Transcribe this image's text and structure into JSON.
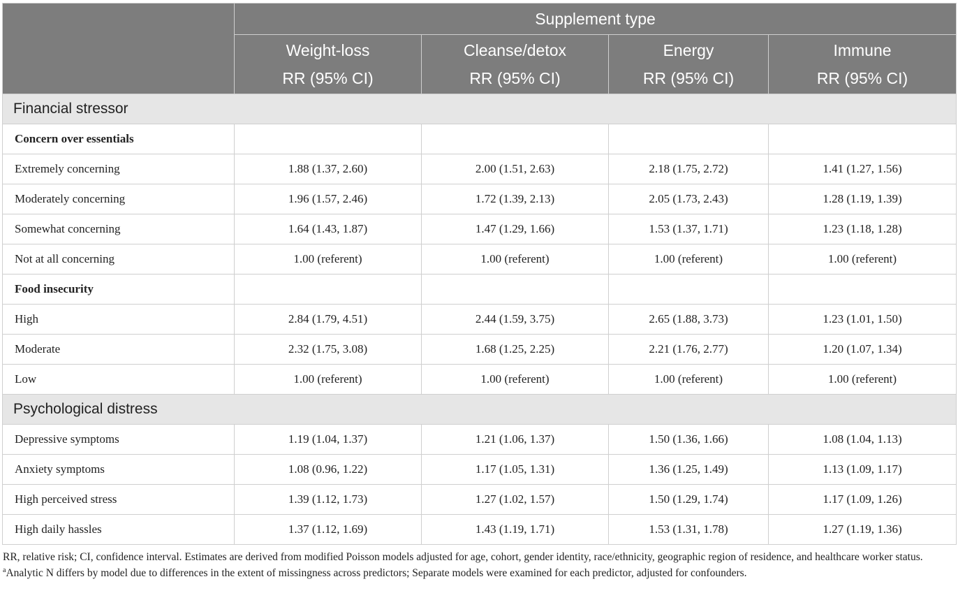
{
  "header": {
    "group_label": "Supplement type",
    "columns": [
      {
        "name": "Weight-loss",
        "stat": "RR (95% CI)"
      },
      {
        "name": "Cleanse/detox",
        "stat": "RR (95% CI)"
      },
      {
        "name": "Energy",
        "stat": "RR (95% CI)"
      },
      {
        "name": "Immune",
        "stat": "RR (95% CI)"
      }
    ]
  },
  "sections": [
    {
      "title": "Financial stressor",
      "subsections": [
        {
          "title": "Concern over essentials",
          "rows": [
            {
              "label": "Extremely concerning",
              "values": [
                "1.88 (1.37, 2.60)",
                "2.00 (1.51, 2.63)",
                "2.18 (1.75, 2.72)",
                "1.41 (1.27, 1.56)"
              ]
            },
            {
              "label": "Moderately concerning",
              "values": [
                "1.96 (1.57, 2.46)",
                "1.72 (1.39, 2.13)",
                "2.05 (1.73, 2.43)",
                "1.28 (1.19, 1.39)"
              ]
            },
            {
              "label": "Somewhat concerning",
              "values": [
                "1.64 (1.43, 1.87)",
                "1.47 (1.29, 1.66)",
                "1.53 (1.37, 1.71)",
                "1.23 (1.18, 1.28)"
              ]
            },
            {
              "label": "Not at all concerning",
              "values": [
                "1.00 (referent)",
                "1.00 (referent)",
                "1.00 (referent)",
                "1.00 (referent)"
              ]
            }
          ]
        },
        {
          "title": "Food insecurity",
          "rows": [
            {
              "label": "High",
              "values": [
                "2.84 (1.79, 4.51)",
                "2.44 (1.59, 3.75)",
                "2.65 (1.88, 3.73)",
                "1.23 (1.01, 1.50)"
              ]
            },
            {
              "label": "Moderate",
              "values": [
                "2.32 (1.75, 3.08)",
                "1.68 (1.25, 2.25)",
                "2.21 (1.76, 2.77)",
                "1.20 (1.07, 1.34)"
              ]
            },
            {
              "label": "Low",
              "values": [
                "1.00 (referent)",
                "1.00 (referent)",
                "1.00 (referent)",
                "1.00 (referent)"
              ]
            }
          ]
        }
      ]
    },
    {
      "title": "Psychological distress",
      "rows": [
        {
          "label": "Depressive symptoms",
          "values": [
            "1.19 (1.04, 1.37)",
            "1.21 (1.06, 1.37)",
            "1.50 (1.36, 1.66)",
            "1.08 (1.04, 1.13)"
          ]
        },
        {
          "label": "Anxiety symptoms",
          "values": [
            "1.08 (0.96, 1.22)",
            "1.17 (1.05, 1.31)",
            "1.36 (1.25, 1.49)",
            "1.13 (1.09, 1.17)"
          ]
        },
        {
          "label": "High perceived stress",
          "values": [
            "1.39 (1.12, 1.73)",
            "1.27 (1.02, 1.57)",
            "1.50 (1.29, 1.74)",
            "1.17 (1.09, 1.26)"
          ]
        },
        {
          "label": "High daily hassles",
          "values": [
            "1.37 (1.12, 1.69)",
            "1.43 (1.19, 1.71)",
            "1.53 (1.31, 1.78)",
            "1.27 (1.19, 1.36)"
          ]
        }
      ]
    }
  ],
  "footnotes": {
    "abbreviations": "RR, relative risk; CI, confidence interval. Estimates are derived from modified Poisson models adjusted for age, cohort, gender identity, race/ethnicity, geographic region of residence, and healthcare worker status.",
    "note_marker": "a",
    "note_text": "Analytic N differs by model due to differences in the extent of missingness across predictors; Separate models were examined for each predictor, adjusted for confounders."
  }
}
